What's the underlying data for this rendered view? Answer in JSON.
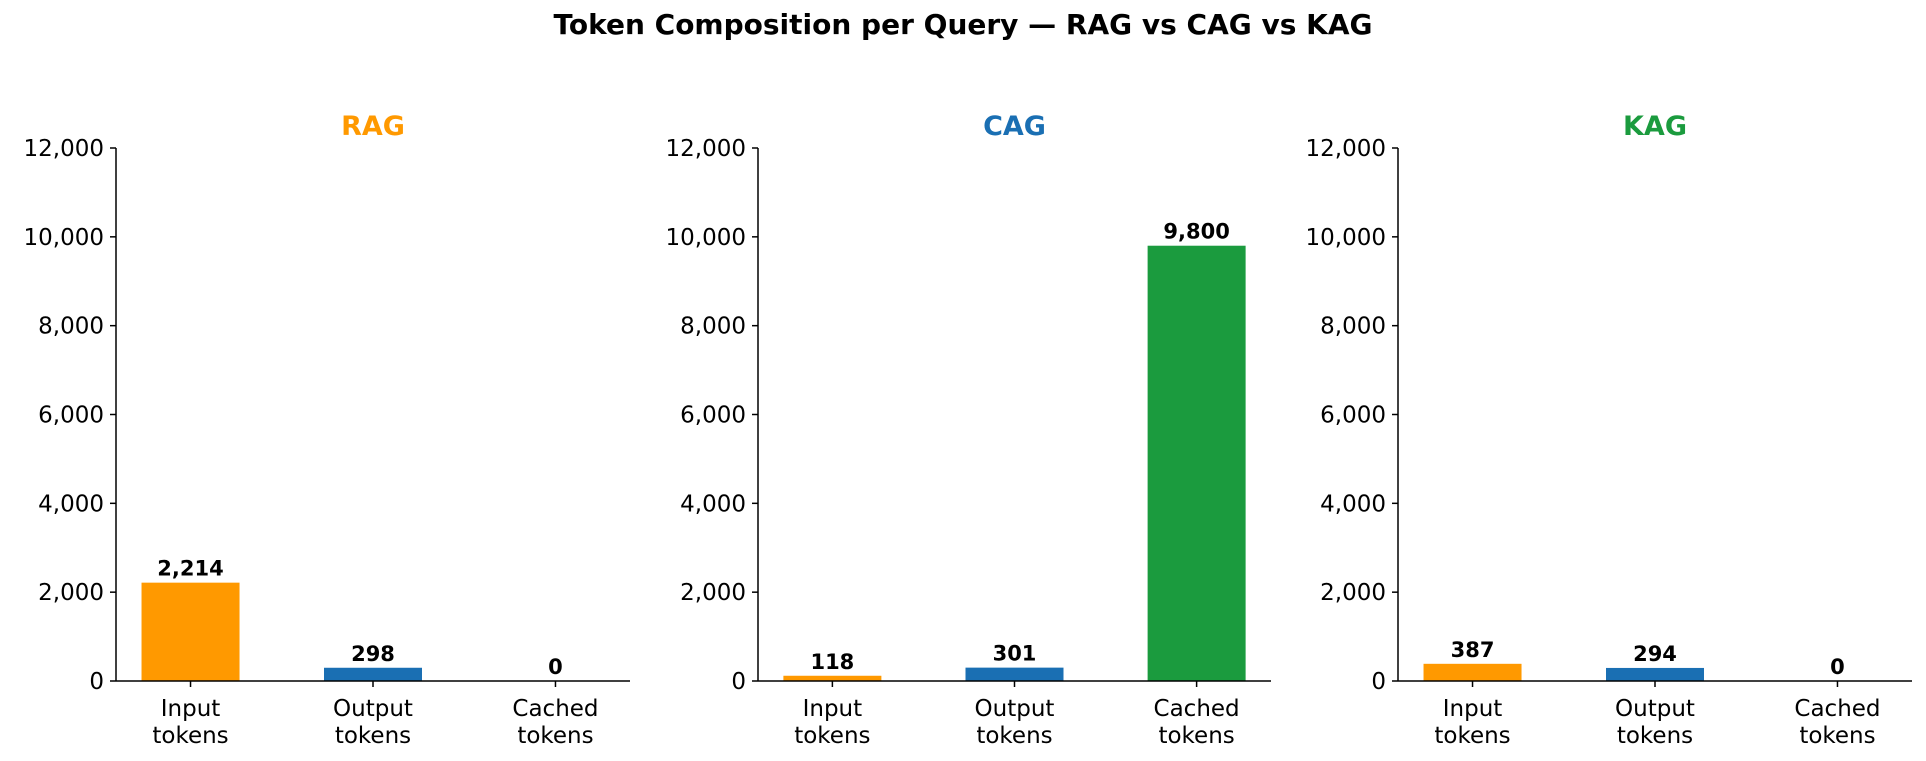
{
  "title": "Token Composition per Query — RAG vs CAG vs KAG",
  "colors": {
    "input": "#ff9900",
    "output": "#1a6fb3",
    "cached": "#1b9b3e"
  },
  "chart_data": [
    {
      "type": "bar",
      "title": "RAG",
      "title_color": "#ff9900",
      "categories": [
        "Input tokens",
        "Output tokens",
        "Cached tokens"
      ],
      "category_lines": [
        [
          "Input",
          "tokens"
        ],
        [
          "Output",
          "tokens"
        ],
        [
          "Cached",
          "tokens"
        ]
      ],
      "values": [
        2214,
        298,
        0
      ],
      "value_labels": [
        "2,214",
        "298",
        "0"
      ],
      "ylim": [
        0,
        12000
      ],
      "yticks": [
        0,
        2000,
        4000,
        6000,
        8000,
        10000,
        12000
      ],
      "ytick_labels": [
        "0",
        "2,000",
        "4,000",
        "6,000",
        "8,000",
        "10,000",
        "12,000"
      ],
      "xlabel": "",
      "ylabel": "",
      "grid": false
    },
    {
      "type": "bar",
      "title": "CAG",
      "title_color": "#1a6fb3",
      "categories": [
        "Input tokens",
        "Output tokens",
        "Cached tokens"
      ],
      "category_lines": [
        [
          "Input",
          "tokens"
        ],
        [
          "Output",
          "tokens"
        ],
        [
          "Cached",
          "tokens"
        ]
      ],
      "values": [
        118,
        301,
        9800
      ],
      "value_labels": [
        "118",
        "301",
        "9,800"
      ],
      "ylim": [
        0,
        12000
      ],
      "yticks": [
        0,
        2000,
        4000,
        6000,
        8000,
        10000,
        12000
      ],
      "ytick_labels": [
        "0",
        "2,000",
        "4,000",
        "6,000",
        "8,000",
        "10,000",
        "12,000"
      ],
      "xlabel": "",
      "ylabel": "",
      "grid": false
    },
    {
      "type": "bar",
      "title": "KAG",
      "title_color": "#1b9b3e",
      "categories": [
        "Input tokens",
        "Output tokens",
        "Cached tokens"
      ],
      "category_lines": [
        [
          "Input",
          "tokens"
        ],
        [
          "Output",
          "tokens"
        ],
        [
          "Cached",
          "tokens"
        ]
      ],
      "values": [
        387,
        294,
        0
      ],
      "value_labels": [
        "387",
        "294",
        "0"
      ],
      "ylim": [
        0,
        12000
      ],
      "yticks": [
        0,
        2000,
        4000,
        6000,
        8000,
        10000,
        12000
      ],
      "ytick_labels": [
        "0",
        "2,000",
        "4,000",
        "6,000",
        "8,000",
        "10,000",
        "12,000"
      ],
      "xlabel": "",
      "ylabel": "",
      "grid": false
    }
  ]
}
